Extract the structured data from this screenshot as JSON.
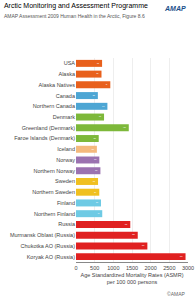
{
  "chart_data": {
    "type": "bar",
    "orientation": "horizontal",
    "title": "Arctic Monitoring and Assessment Programme",
    "subtitle": "AMAP Assessment 2009 Human Health in the Arctic, Figure 8.6",
    "annotations": [
      "AMAP",
      "©AMAP"
    ],
    "xlabel": "Age Standardized Mortality Rates (ASMR)\nper 100 000 persons",
    "categories": [
      "USA",
      "Alaska",
      "Alaska Natives",
      "Canada",
      "Northern Canada",
      "Denmark",
      "Greenland (Denmark)",
      "Faroe Islands (Denmark)",
      "Iceland",
      "Norway",
      "Northern Norway",
      "Sweden",
      "Northern Sweden",
      "Finland",
      "Northern Finland",
      "Russia",
      "Murmansk Oblast (Russia)",
      "Chukotka AO (Russia)",
      "Koryak AO (Russia)"
    ],
    "values": [
      698.9,
      683.1,
      919,
      585.6,
      841.2,
      751.3,
      1413.8,
      608.8,
      559.6,
      624.8,
      653.7,
      590.5,
      623.7,
      670.2,
      703,
      1453.9,
      1653.8,
      1911.8,
      2934.2
    ],
    "colors": [
      "#e8601c",
      "#e8601c",
      "#e8601c",
      "#4da6d4",
      "#4da6d4",
      "#7db83a",
      "#7db83a",
      "#7db83a",
      "#f4b97d",
      "#9b72b0",
      "#9b72b0",
      "#f0c020",
      "#f0c020",
      "#6ecae4",
      "#6ecae4",
      "#e02020",
      "#e02020",
      "#e02020",
      "#e02020"
    ],
    "xlim": [
      0,
      3000
    ],
    "xticks": [
      0,
      500,
      1000,
      1500,
      2000,
      2500,
      3000
    ],
    "grid": true,
    "data_labels": true
  }
}
